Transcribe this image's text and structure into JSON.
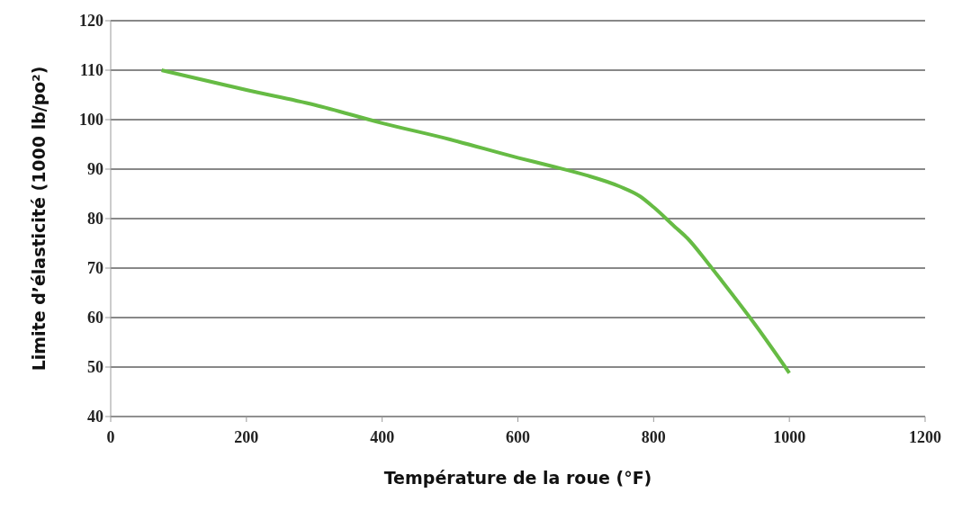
{
  "chart_data": {
    "type": "line",
    "xlabel": "Température de la roue (°F)",
    "ylabel": "Limite d’élasticité (1000 lb/po²)",
    "x": [
      75,
      200,
      300,
      400,
      500,
      600,
      650,
      700,
      750,
      780,
      800,
      830,
      850,
      880,
      900,
      950,
      1000
    ],
    "series": [
      {
        "color": "#66bb44",
        "values": [
          110,
          106,
          103,
          99.3,
          96,
          92.3,
          90.6,
          88.8,
          86.5,
          84.5,
          82.3,
          78.5,
          76,
          71,
          67.5,
          58.5,
          48.8
        ]
      }
    ],
    "xlim": [
      0,
      1200
    ],
    "xticks": [
      0,
      200,
      400,
      600,
      800,
      1000,
      1200
    ],
    "ylim": [
      40,
      120
    ],
    "yticks": [
      40,
      50,
      60,
      70,
      80,
      90,
      100,
      110,
      120
    ],
    "grid": "y",
    "marker": "none",
    "line_style": "solid"
  }
}
